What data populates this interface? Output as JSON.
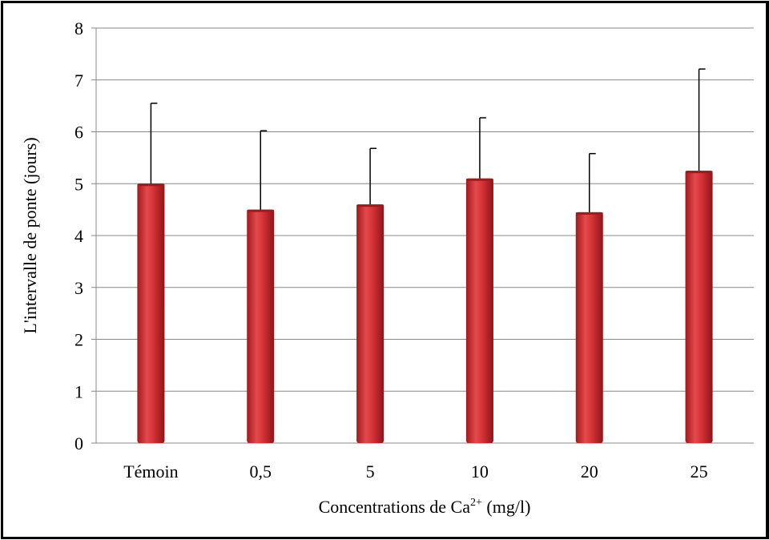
{
  "chart_data": {
    "type": "bar",
    "categories": [
      "Témoin",
      "0,5",
      "5",
      "10",
      "20",
      "25"
    ],
    "values": [
      5.0,
      4.5,
      4.6,
      5.1,
      4.45,
      5.25
    ],
    "error_bars_upper": [
      1.55,
      1.52,
      1.08,
      1.17,
      1.13,
      1.96
    ],
    "xlabel": {
      "main": "Concentrations de Ca",
      "sup": "2+",
      "unit": " (mg/l)"
    },
    "ylabel": "L'intervalle de ponte (jours)",
    "ylim": [
      0,
      8
    ],
    "yticks": [
      "0",
      "1",
      "2",
      "3",
      "4",
      "5",
      "6",
      "7",
      "8"
    ],
    "grid": true,
    "legend": "none",
    "colors": {
      "bar": "#d9363a",
      "bar_light": "#f06a6a",
      "bar_dark": "#a3181c",
      "grid": "#888888",
      "error": "#000000"
    }
  }
}
